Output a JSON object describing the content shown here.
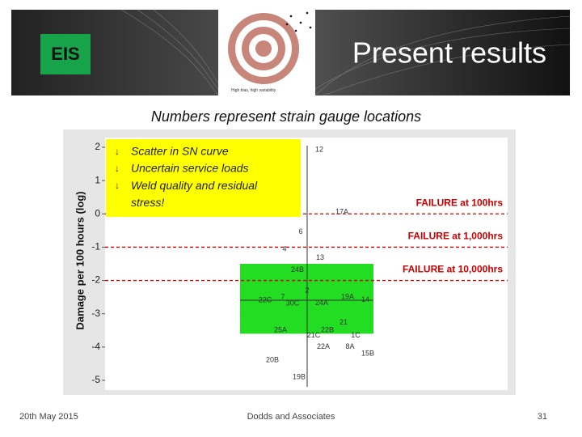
{
  "slide": {
    "title": "Present results",
    "logo_text": "EIS",
    "target_caption": "High bias, high variability",
    "subtitle": "Numbers represent strain gauge locations",
    "footer_date": "20th May 2015",
    "footer_company": "Dodds and Associates",
    "page_number": "31"
  },
  "chart_data": {
    "type": "scatter",
    "y_label": "Damage per 100 hours (log)",
    "ylim": [
      -5,
      2
    ],
    "yticks": [
      2,
      1,
      0,
      -1,
      -2,
      -3,
      -4,
      -5
    ],
    "annotations": [
      "Scatter in SN curve",
      "Uncertain service loads",
      "Weld quality and residual stress!"
    ],
    "reference_lines": [
      {
        "label": "FAILURE at 100hrs",
        "value": 0,
        "color": "#cc0000"
      },
      {
        "label": "FAILURE at 1,000hrs",
        "value": -1,
        "color": "#cc0000"
      },
      {
        "label": "FAILURE at 10,000hrs",
        "value": -2,
        "color": "#cc0000"
      }
    ],
    "highlight_range": [
      -3.6,
      -1.5
    ],
    "highlight_color": "#22dd22",
    "categories": [
      "12",
      "17A",
      "6",
      "4",
      "13",
      "24B",
      "2",
      "22C",
      "7",
      "30C",
      "24A",
      "19A",
      "14",
      "21",
      "25A",
      "22B",
      "21C",
      "1C",
      "22A",
      "8A",
      "15B",
      "20B",
      "19B"
    ],
    "values": [
      1.93,
      0.05,
      -0.54,
      -1.07,
      -1.32,
      -1.68,
      -2.3,
      -2.6,
      -2.5,
      -2.7,
      -2.68,
      -2.5,
      -2.58,
      -3.27,
      -3.5,
      -3.5,
      -3.66,
      -3.66,
      -4.0,
      -4.0,
      -4.2,
      -4.4,
      -4.9
    ]
  }
}
